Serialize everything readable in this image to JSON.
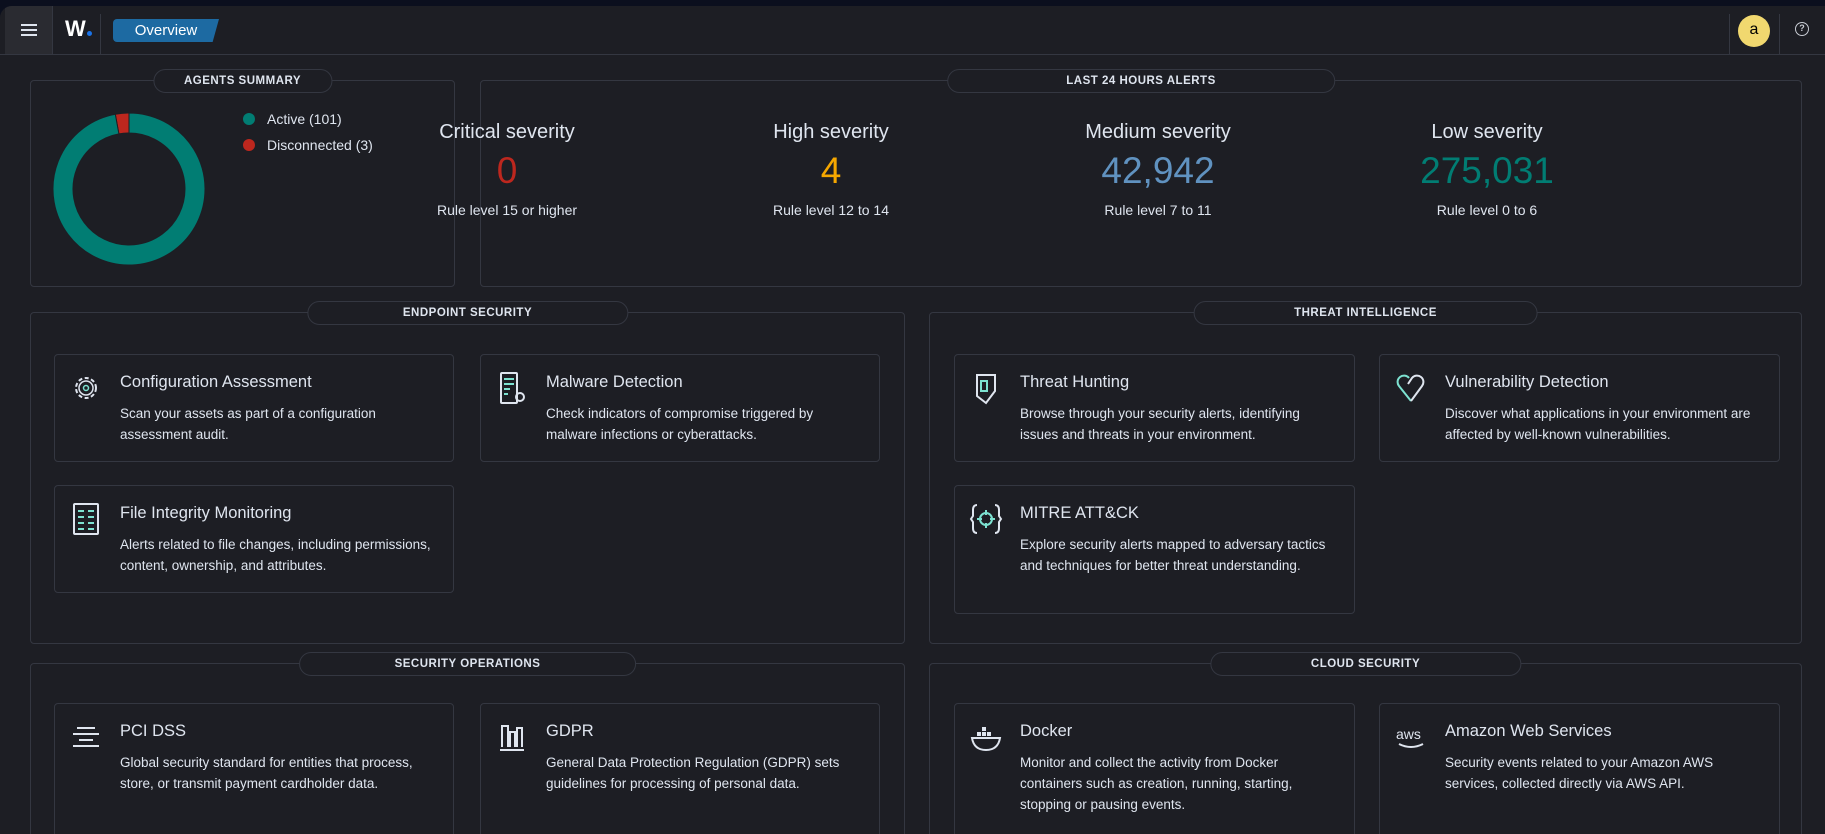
{
  "header": {
    "breadcrumb": "Overview",
    "logo": "W",
    "avatar_initial": "a",
    "help_icon": "?",
    "icons": [
      "menu-icon",
      "help-icon"
    ]
  },
  "agents": {
    "title": "AGENTS SUMMARY",
    "active_label": "Active (101)",
    "disconnected_label": "Disconnected (3)",
    "active": 101,
    "disconnected": 3,
    "colors": {
      "active": "#017d73",
      "disconnected": "#bd271e"
    }
  },
  "alerts": {
    "title": "LAST 24 HOURS ALERTS",
    "items": [
      {
        "title": "Critical severity",
        "value": "0",
        "rule": "Rule level 15 or higher",
        "color": "#bd271e"
      },
      {
        "title": "High severity",
        "value": "4",
        "rule": "Rule level 12 to 14",
        "color": "#f5a700"
      },
      {
        "title": "Medium severity",
        "value": "42,942",
        "rule": "Rule level 7 to 11",
        "color": "#6092c0"
      },
      {
        "title": "Low severity",
        "value": "275,031",
        "rule": "Rule level 0 to 6",
        "color": "#017d73"
      }
    ]
  },
  "sections": [
    {
      "title": "ENDPOINT SECURITY",
      "cards": [
        {
          "title": "Configuration Assessment",
          "desc": "Scan your assets as part of a configuration assessment audit.",
          "icon": "gear-icon"
        },
        {
          "title": "Malware Detection",
          "desc": "Check indicators of compromise triggered by malware infections or cyberattacks.",
          "icon": "document-gear-icon"
        },
        {
          "title": "File Integrity Monitoring",
          "desc": "Alerts related to file changes, including permissions, content, ownership, and attributes.",
          "icon": "file-list-icon"
        }
      ]
    },
    {
      "title": "THREAT INTELLIGENCE",
      "cards": [
        {
          "title": "Threat Hunting",
          "desc": "Browse through your security alerts, identifying issues and threats in your environment.",
          "icon": "shield-icon"
        },
        {
          "title": "Vulnerability Detection",
          "desc": "Discover what applications in your environment are affected by well-known vulnerabilities.",
          "icon": "broken-heart-icon"
        },
        {
          "title": "MITRE ATT&CK",
          "desc": "Explore security alerts mapped to adversary tactics and techniques for better threat understanding.",
          "icon": "target-braces-icon"
        }
      ]
    },
    {
      "title": "SECURITY OPERATIONS",
      "cards": [
        {
          "title": "PCI DSS",
          "desc": "Global security standard for entities that process, store, or transmit payment cardholder data.",
          "icon": "pci-icon"
        },
        {
          "title": "GDPR",
          "desc": "General Data Protection Regulation (GDPR) sets guidelines for processing of personal data.",
          "icon": "gdpr-icon"
        }
      ]
    },
    {
      "title": "CLOUD SECURITY",
      "cards": [
        {
          "title": "Docker",
          "desc": "Monitor and collect the activity from Docker containers such as creation, running, starting, stopping or pausing events.",
          "icon": "docker-icon"
        },
        {
          "title": "Amazon Web Services",
          "desc": "Security events related to your Amazon AWS services, collected directly via AWS API.",
          "icon": "aws-icon"
        }
      ]
    }
  ]
}
